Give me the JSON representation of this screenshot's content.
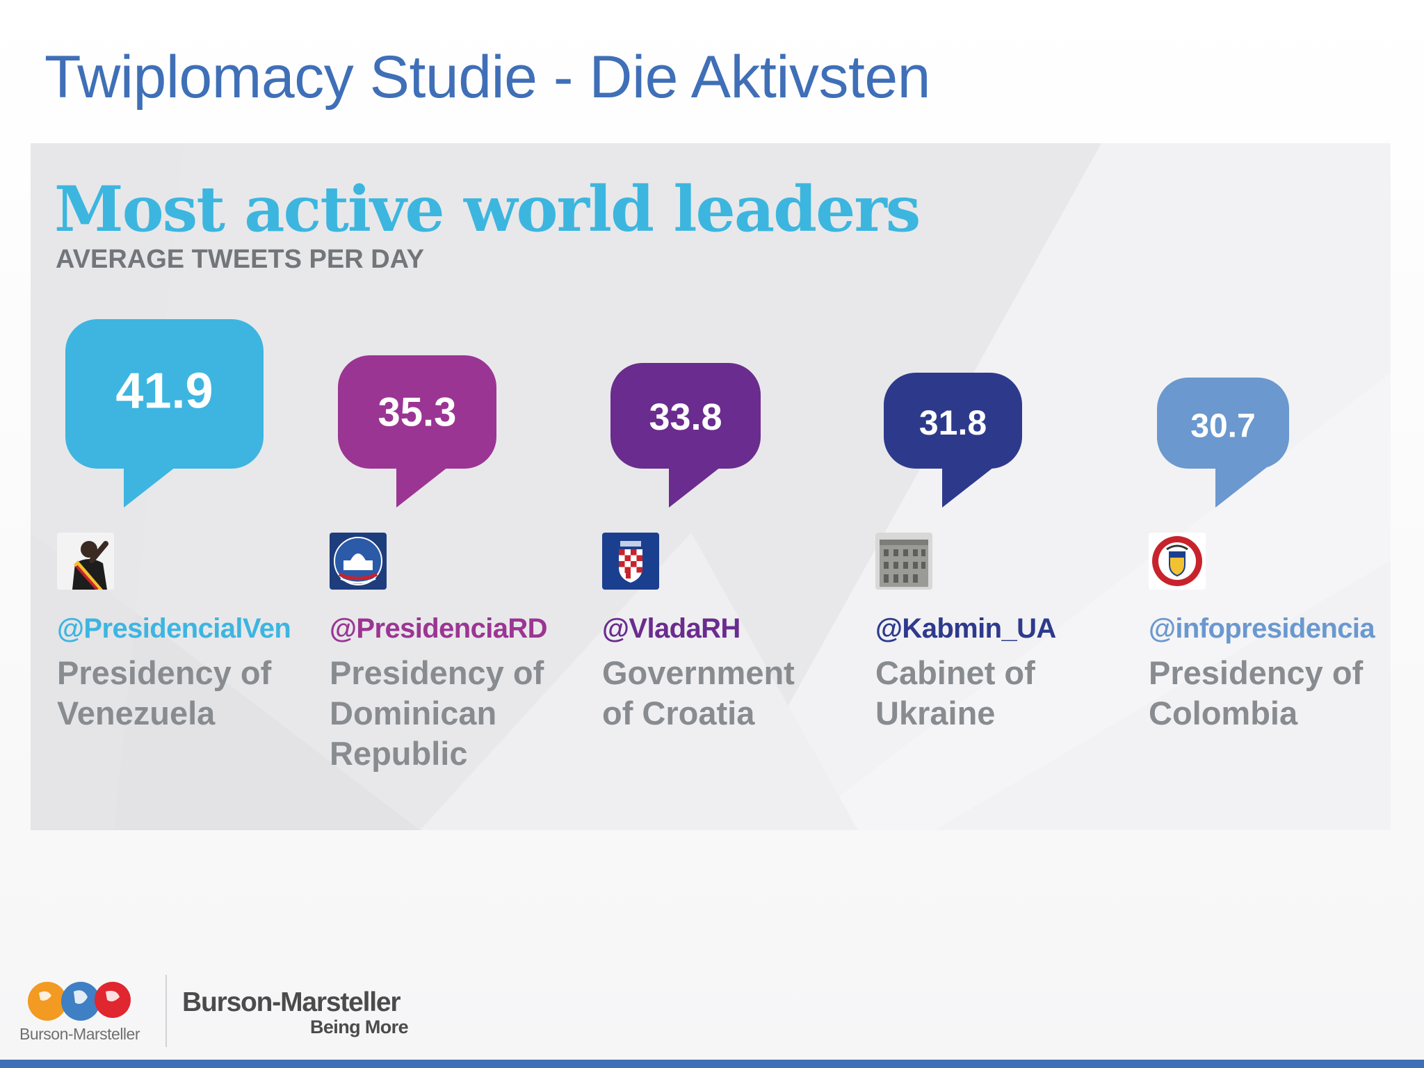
{
  "slide": {
    "title": "Twiplomacy Studie - Die Aktivsten"
  },
  "chart_data": {
    "type": "bar",
    "title": "Most active world leaders",
    "subtitle": "AVERAGE TWEETS PER DAY",
    "categories": [
      "@PresidencialVen",
      "@PresidenciaRD",
      "@VladaRH",
      "@Kabmin_UA",
      "@infopresidencia"
    ],
    "values": [
      41.9,
      35.3,
      33.8,
      31.8,
      30.7
    ],
    "series_colors": [
      "#3db5e0",
      "#9b3593",
      "#6a2c8e",
      "#2d3a8c",
      "#6a98cf"
    ],
    "data_labels": [
      "41.9",
      "35.3",
      "33.8",
      "31.8",
      "30.7"
    ]
  },
  "leaders": [
    {
      "handle": "@PresidencialVen",
      "office": "Presidency of Venezuela",
      "color": "#3db5e0",
      "avatar_icon": "saluting-president-photo-icon"
    },
    {
      "handle": "@PresidenciaRD",
      "office": "Presidency of Dominican Republic",
      "color": "#9b3593",
      "avatar_icon": "national-palace-seal-icon"
    },
    {
      "handle": "@VladaRH",
      "office": "Government of Croatia",
      "color": "#6a2c8e",
      "avatar_icon": "croatian-checkerboard-coat-of-arms-icon"
    },
    {
      "handle": "@Kabmin_UA",
      "office": "Cabinet of Ukraine",
      "color": "#2d3a8c",
      "avatar_icon": "government-building-photo-icon"
    },
    {
      "handle": "@infopresidencia",
      "office": "Presidency of Colombia",
      "color": "#6a98cf",
      "avatar_icon": "colombian-coat-of-arms-seal-icon"
    }
  ],
  "footer": {
    "logo_caption": "Burson-Marsteller",
    "brand": "Burson-Marsteller",
    "tagline": "Being More",
    "accent_color": "#3f6fb7"
  }
}
